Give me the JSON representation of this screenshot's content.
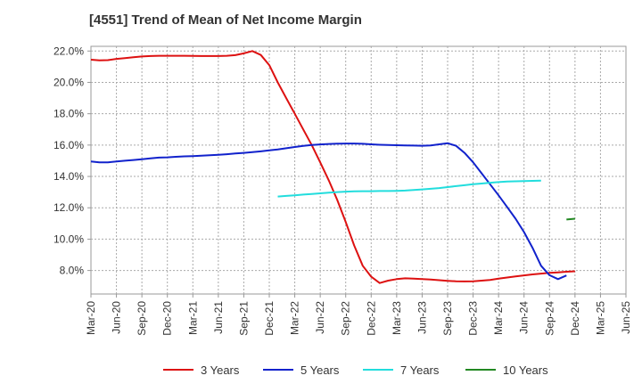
{
  "chart_data": {
    "type": "line",
    "title": "[4551]  Trend of Mean of Net Income Margin",
    "xlabel": "",
    "ylabel": "",
    "ylim": [
      6.5,
      22.3
    ],
    "yticks": [
      8.0,
      10.0,
      12.0,
      14.0,
      16.0,
      18.0,
      20.0,
      22.0
    ],
    "ytick_labels": [
      "8.0%",
      "10.0%",
      "12.0%",
      "14.0%",
      "16.0%",
      "18.0%",
      "20.0%",
      "22.0%"
    ],
    "xticks": [
      "Mar-20",
      "Jun-20",
      "Sep-20",
      "Dec-20",
      "Mar-21",
      "Jun-21",
      "Sep-21",
      "Dec-21",
      "Mar-22",
      "Jun-22",
      "Sep-22",
      "Dec-22",
      "Mar-23",
      "Jun-23",
      "Sep-23",
      "Dec-23",
      "Mar-24",
      "Jun-24",
      "Sep-24",
      "Dec-24",
      "Mar-25",
      "Jun-25"
    ],
    "grid": true,
    "legend_position": "bottom",
    "series": [
      {
        "name": "3 Years",
        "color": "#dd1111",
        "start_index": 0,
        "values": [
          21.45,
          21.4,
          21.42,
          21.5,
          21.55,
          21.6,
          21.65,
          21.68,
          21.7,
          21.7,
          21.7,
          21.7,
          21.69,
          21.68,
          21.68,
          21.68,
          21.7,
          21.74,
          21.85,
          22.0,
          21.75,
          21.1,
          20.0,
          19.0,
          18.0,
          17.0,
          16.0,
          14.9,
          13.75,
          12.5,
          11.1,
          9.6,
          8.3,
          7.6,
          7.2,
          7.35,
          7.45,
          7.5,
          7.48,
          7.45,
          7.42,
          7.38,
          7.34,
          7.31,
          7.3,
          7.31,
          7.35,
          7.4,
          7.48,
          7.55,
          7.62,
          7.69,
          7.75,
          7.8,
          7.85,
          7.88,
          7.92,
          7.95
        ]
      },
      {
        "name": "5 Years",
        "color": "#1122cc",
        "start_index": 0,
        "values": [
          14.95,
          14.9,
          14.9,
          14.95,
          15.0,
          15.05,
          15.1,
          15.15,
          15.2,
          15.22,
          15.25,
          15.28,
          15.3,
          15.32,
          15.35,
          15.38,
          15.42,
          15.46,
          15.5,
          15.55,
          15.6,
          15.66,
          15.72,
          15.8,
          15.88,
          15.95,
          16.0,
          16.04,
          16.07,
          16.09,
          16.1,
          16.1,
          16.08,
          16.05,
          16.02,
          16.0,
          15.99,
          15.98,
          15.97,
          15.96,
          15.98,
          16.05,
          16.12,
          15.95,
          15.5,
          14.9,
          14.2,
          13.5,
          12.8,
          12.05,
          11.3,
          10.45,
          9.45,
          8.3,
          7.7,
          7.45,
          7.68
        ]
      },
      {
        "name": "7 Years",
        "color": "#22dddd",
        "start_index": 22,
        "values": [
          12.72,
          12.76,
          12.8,
          12.84,
          12.88,
          12.92,
          12.96,
          13.0,
          13.03,
          13.05,
          13.06,
          13.06,
          13.07,
          13.07,
          13.08,
          13.1,
          13.13,
          13.17,
          13.21,
          13.26,
          13.32,
          13.38,
          13.44,
          13.5,
          13.55,
          13.6,
          13.64,
          13.67,
          13.69,
          13.7,
          13.72,
          13.73
        ]
      },
      {
        "name": "10 Years",
        "color": "#228822",
        "start_index": 56,
        "values": [
          11.25,
          11.3
        ]
      }
    ]
  }
}
